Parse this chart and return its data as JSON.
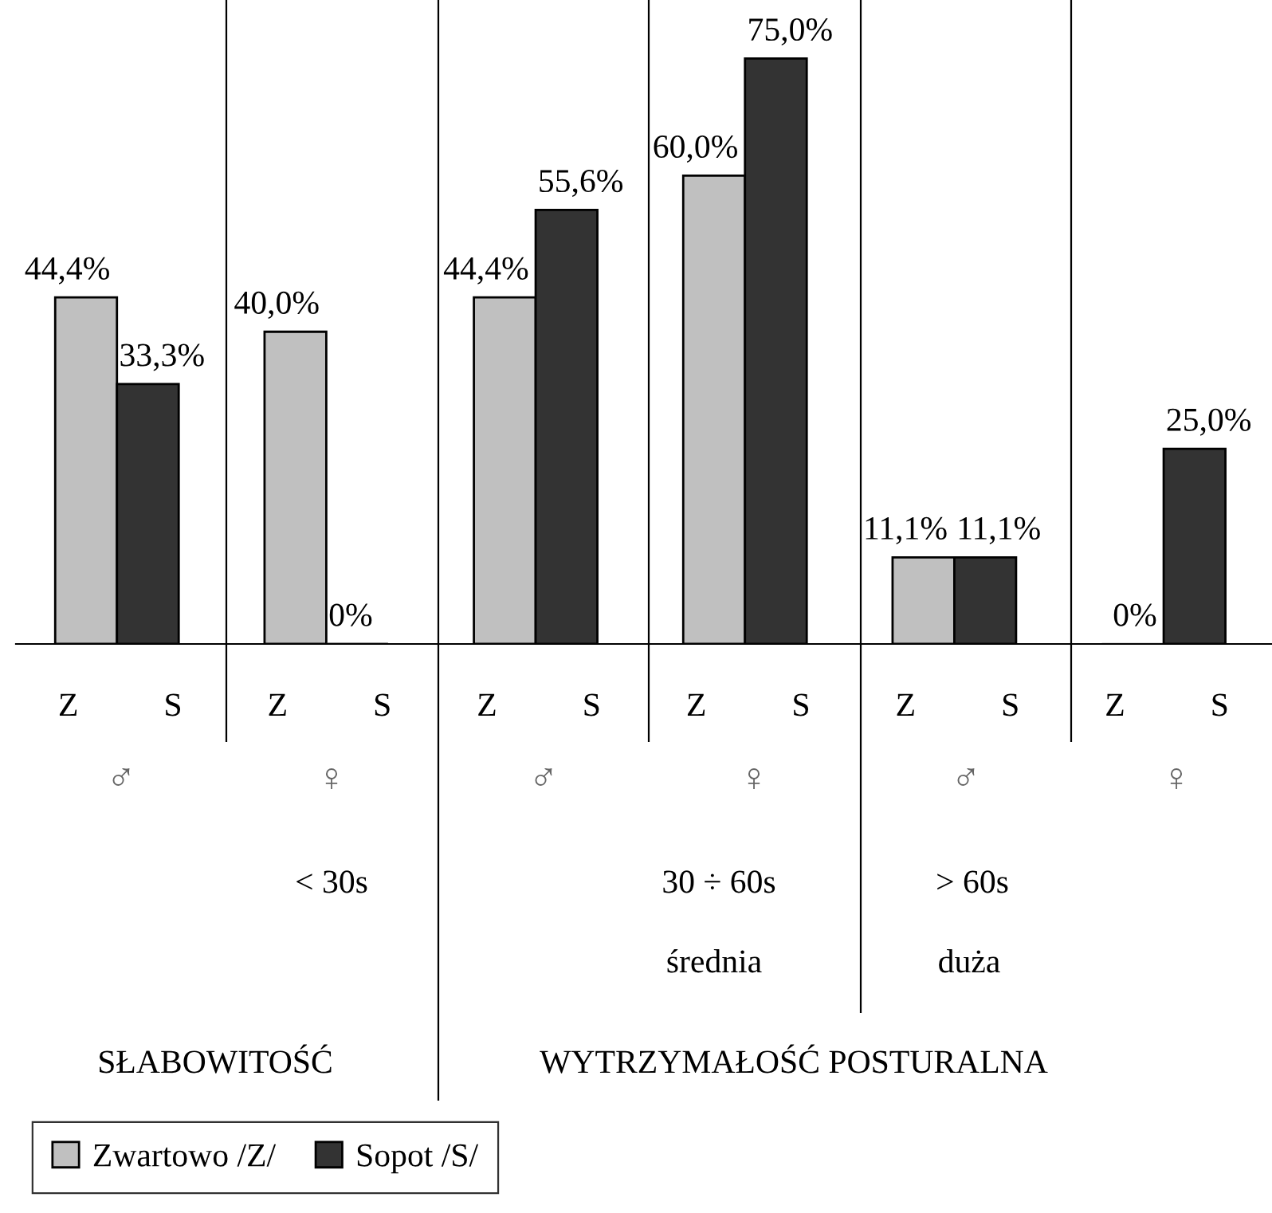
{
  "chart_data": {
    "type": "bar",
    "categories": [
      "Z",
      "S",
      "Z",
      "S",
      "Z",
      "S",
      "Z",
      "S",
      "Z",
      "S",
      "Z",
      "S"
    ],
    "series": [
      {
        "name": "Zwartowo /Z/",
        "color": "#c0c0c0",
        "values": [
          44.4,
          null,
          40.0,
          null,
          44.4,
          null,
          60.0,
          null,
          11.1,
          null,
          0,
          null
        ],
        "value_labels": [
          "44,4%",
          null,
          "40,0%",
          null,
          "44,4%",
          null,
          "60,0%",
          null,
          "11,1%",
          null,
          "0%",
          null
        ]
      },
      {
        "name": "Sopot /S/",
        "color": "#333333",
        "values": [
          null,
          33.3,
          null,
          0,
          null,
          55.6,
          null,
          75.0,
          null,
          11.1,
          null,
          25.0
        ],
        "value_labels": [
          null,
          "33,3%",
          null,
          "0%",
          null,
          "55,6%",
          null,
          "75,0%",
          null,
          "11,1%",
          null,
          "25,0%"
        ]
      }
    ],
    "legend": "bottom left",
    "annotations": [
      "♂",
      "♀",
      "♂",
      "♀",
      "♂",
      "♀",
      "< 30s",
      "30 ÷ 60s",
      "> 60s",
      "średnia",
      "duża",
      "SŁABOWITOŚĆ",
      "WYTRZYMAŁOŚĆ POSTURALNA"
    ]
  }
}
